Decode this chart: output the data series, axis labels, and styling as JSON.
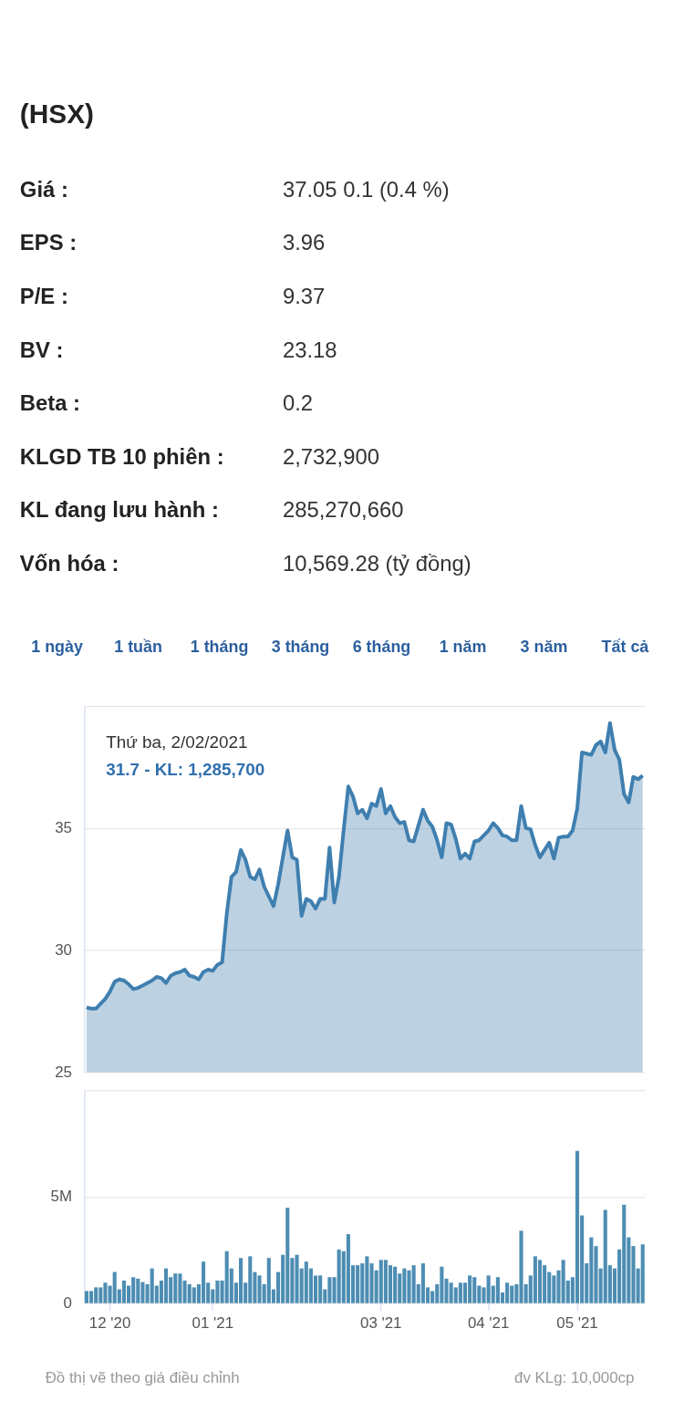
{
  "chart_data": [
    {
      "type": "other",
      "title": "(HSX)",
      "annotations": [
        "Giá :",
        "37.05 0.1 (0.4 %)",
        "EPS :",
        "3.96",
        "P/E :",
        "9.37",
        "BV :",
        "23.18",
        "Beta :",
        "0.2",
        "KLGD TB 10 phiên :",
        "2,732,900",
        "KL đang lưu hành :",
        "285,270,660",
        "Vốn hóa :",
        "10,569.28 (tỷ đồng)"
      ],
      "categories": [
        "1 ngày",
        "1 tuần",
        "1 tháng",
        "3 tháng",
        "6 tháng",
        "1 năm",
        "3 năm",
        "Tất cả"
      ]
    },
    {
      "type": "area",
      "tick_labels": "y",
      "grid": "y",
      "categories": [
        null,
        null,
        null,
        null,
        null,
        null,
        null,
        null,
        null,
        null,
        null,
        null,
        null,
        null,
        null,
        null,
        null,
        null,
        null,
        null,
        null,
        null,
        null,
        null,
        null,
        null,
        null,
        null,
        null,
        null,
        null,
        null,
        null,
        null,
        null,
        null,
        null,
        null,
        null,
        null,
        null,
        null,
        null,
        null,
        null,
        null,
        null,
        null,
        null,
        null,
        null,
        null,
        null,
        null,
        null,
        null,
        null,
        null,
        null,
        null,
        null,
        null,
        null,
        null,
        null,
        null,
        null,
        null,
        null,
        null,
        null,
        null,
        null,
        null,
        null,
        null,
        null,
        null,
        null,
        null,
        null,
        null,
        null,
        null,
        null,
        null,
        null,
        null,
        null,
        null,
        null,
        null,
        null,
        null,
        null,
        null,
        null,
        null,
        null,
        null,
        null,
        null,
        null,
        null,
        null,
        null,
        null,
        null,
        null,
        null,
        null,
        null,
        null,
        null,
        null,
        null,
        null,
        null,
        null,
        null
      ],
      "ylim": [
        25,
        40
      ],
      "yticks": [
        25,
        30,
        35,
        {
          "value": 40,
          "label": null
        }
      ],
      "annotations": [
        "Thứ ba, 2/02/2021",
        "31.7 - KL: 1,285,700"
      ],
      "series": [
        {
          "color": "#3f7fb0",
          "values": [
            27.65,
            27.6,
            27.6,
            27.8,
            28.0,
            28.3,
            28.7,
            28.8,
            28.75,
            28.6,
            28.4,
            28.45,
            28.55,
            28.65,
            28.75,
            28.9,
            28.85,
            28.65,
            28.95,
            29.05,
            29.1,
            29.2,
            28.95,
            28.9,
            28.8,
            29.1,
            29.2,
            29.15,
            29.4,
            29.5,
            31.5,
            33.0,
            33.2,
            34.1,
            33.7,
            33.0,
            32.9,
            33.3,
            32.6,
            32.2,
            31.8,
            32.7,
            33.8,
            34.9,
            33.8,
            33.7,
            31.4,
            32.1,
            32.0,
            31.7,
            32.1,
            32.1,
            34.2,
            31.95,
            33.0,
            34.9,
            36.7,
            36.3,
            35.6,
            35.75,
            35.4,
            36.0,
            35.9,
            36.6,
            35.6,
            35.9,
            35.45,
            35.2,
            35.25,
            34.5,
            34.45,
            35.1,
            35.75,
            35.3,
            35.05,
            34.5,
            33.8,
            35.2,
            35.15,
            34.55,
            33.75,
            33.95,
            33.75,
            34.45,
            34.5,
            34.7,
            34.9,
            35.2,
            35.0,
            34.7,
            34.65,
            34.5,
            34.5,
            35.9,
            35.0,
            34.95,
            34.3,
            33.8,
            34.1,
            34.4,
            33.75,
            34.6,
            34.65,
            34.65,
            34.9,
            35.8,
            38.1,
            38.05,
            38.0,
            38.4,
            38.55,
            38.1,
            39.3,
            38.2,
            37.8,
            36.4,
            36.05,
            37.1,
            37.0,
            37.15
          ]
        }
      ]
    },
    {
      "type": "bar",
      "grid": "y",
      "categories": [
        null,
        null,
        null,
        null,
        null,
        "12 '20",
        null,
        null,
        null,
        null,
        null,
        null,
        null,
        null,
        null,
        null,
        null,
        null,
        null,
        null,
        null,
        null,
        null,
        null,
        null,
        null,
        null,
        "01 '21",
        null,
        null,
        null,
        null,
        null,
        null,
        null,
        null,
        null,
        null,
        null,
        null,
        null,
        null,
        null,
        null,
        null,
        null,
        null,
        null,
        null,
        null,
        null,
        null,
        null,
        null,
        null,
        null,
        null,
        null,
        null,
        null,
        null,
        null,
        null,
        "03 '21",
        null,
        null,
        null,
        null,
        null,
        null,
        null,
        null,
        null,
        null,
        null,
        null,
        null,
        null,
        null,
        null,
        null,
        null,
        null,
        null,
        null,
        null,
        "04 '21",
        null,
        null,
        null,
        null,
        null,
        null,
        null,
        null,
        null,
        null,
        null,
        null,
        null,
        null,
        null,
        null,
        null,
        null,
        "05 '21",
        null,
        null,
        null,
        null,
        null,
        null,
        null,
        null,
        null,
        null,
        null,
        null,
        null,
        null
      ],
      "ylim": [
        0,
        10
      ],
      "yticks": [
        0,
        {
          "value": 5,
          "label": "5M"
        },
        {
          "value": 10,
          "label": null
        }
      ],
      "annotations": [
        "Đồ thị vẽ theo giá điều chỉnh",
        "đv KLg: 10,000cp"
      ],
      "series": [
        {
          "color": "#4d8db3",
          "values": [
            0.57,
            0.57,
            0.74,
            0.74,
            0.96,
            0.82,
            1.46,
            0.65,
            1.06,
            0.82,
            1.22,
            1.15,
            0.99,
            0.89,
            1.63,
            0.82,
            1.06,
            1.63,
            1.22,
            1.39,
            1.39,
            1.06,
            0.89,
            0.74,
            0.89,
            1.95,
            0.96,
            0.65,
            1.06,
            1.06,
            2.44,
            1.63,
            0.96,
            2.12,
            0.96,
            2.2,
            1.46,
            1.3,
            0.89,
            2.12,
            0.65,
            1.46,
            2.27,
            4.48,
            2.12,
            2.27,
            1.63,
            1.95,
            1.63,
            1.29,
            1.3,
            0.65,
            1.22,
            1.22,
            2.52,
            2.44,
            3.24,
            1.78,
            1.78,
            1.87,
            2.2,
            1.87,
            1.54,
            2.03,
            2.03,
            1.78,
            1.71,
            1.39,
            1.63,
            1.54,
            1.78,
            0.89,
            1.87,
            0.74,
            0.57,
            0.89,
            1.71,
            1.15,
            0.96,
            0.74,
            0.96,
            0.96,
            1.3,
            1.22,
            0.82,
            0.74,
            1.3,
            0.82,
            1.22,
            0.5,
            0.96,
            0.82,
            0.89,
            3.4,
            0.89,
            1.3,
            2.2,
            2.03,
            1.78,
            1.46,
            1.3,
            1.54,
            2.03,
            1.06,
            1.22,
            7.15,
            4.12,
            1.87,
            3.09,
            2.68,
            1.63,
            4.38,
            1.78,
            1.63,
            2.52,
            4.62,
            3.09,
            2.68,
            1.63,
            2.76
          ]
        }
      ]
    }
  ]
}
